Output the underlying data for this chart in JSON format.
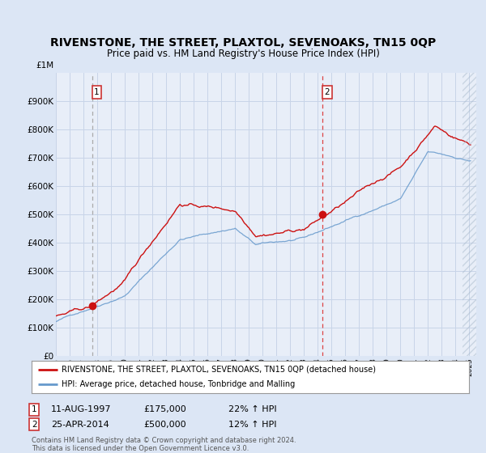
{
  "title": "RIVENSTONE, THE STREET, PLAXTOL, SEVENOAKS, TN15 0QP",
  "subtitle": "Price paid vs. HM Land Registry's House Price Index (HPI)",
  "title_fontsize": 10,
  "subtitle_fontsize": 8.5,
  "bg_color": "#dce6f5",
  "plot_bg_color": "#e8eef8",
  "grid_color": "#c8d4e8",
  "ylim": [
    0,
    1000000
  ],
  "yticks": [
    0,
    100000,
    200000,
    300000,
    400000,
    500000,
    600000,
    700000,
    800000,
    900000
  ],
  "ytick_labels": [
    "£0",
    "£100K",
    "£200K",
    "£300K",
    "£400K",
    "£500K",
    "£600K",
    "£700K",
    "£800K",
    "£900K"
  ],
  "y1m_label": "£1M",
  "sale1_date": "11-AUG-1997",
  "sale1_price": 175000,
  "sale1_hpi_pct": "22%",
  "sale2_date": "25-APR-2014",
  "sale2_price": 500000,
  "sale2_hpi_pct": "12%",
  "legend_label1": "RIVENSTONE, THE STREET, PLAXTOL, SEVENOAKS, TN15 0QP (detached house)",
  "legend_label2": "HPI: Average price, detached house, Tonbridge and Malling",
  "footer1": "Contains HM Land Registry data © Crown copyright and database right 2024.",
  "footer2": "This data is licensed under the Open Government Licence v3.0.",
  "red_line_color": "#cc1111",
  "blue_line_color": "#6699cc",
  "marker_color": "#cc1111",
  "dashed1_color": "#aaaaaa",
  "dashed2_color": "#dd4444",
  "sale1_x": 1997.62,
  "sale2_x": 2014.33,
  "xlim_start": 1995.0,
  "xlim_end": 2025.5,
  "hatch_start": 2024.5
}
